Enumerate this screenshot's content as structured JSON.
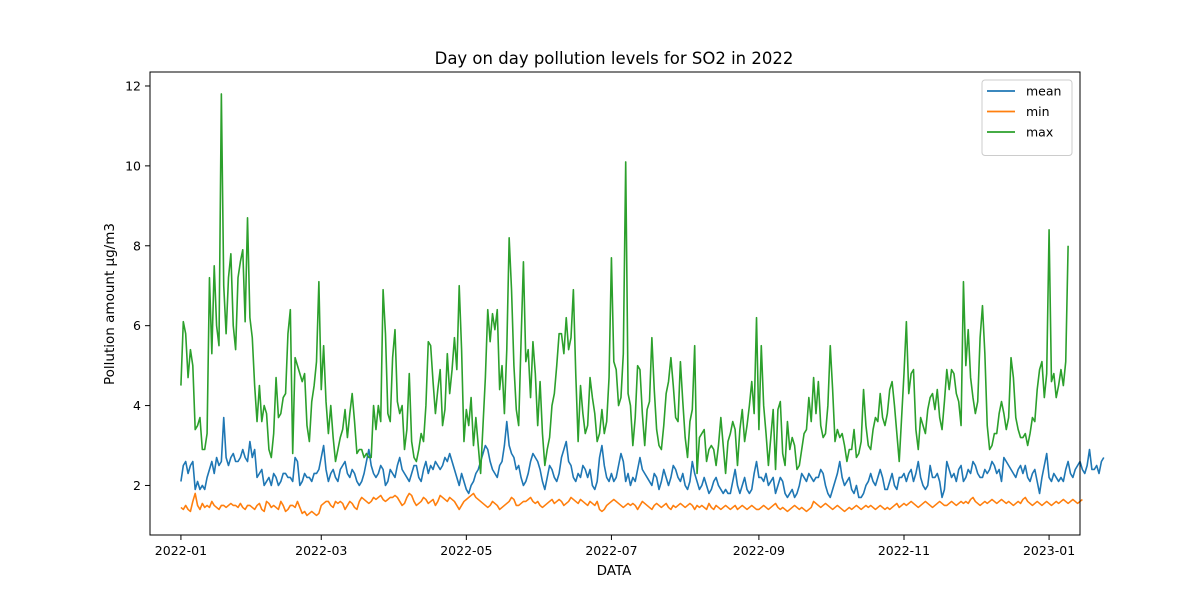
{
  "chart_data": {
    "type": "line",
    "title": "Day on day pollution levels for SO2 in 2022",
    "xlabel": "DATA",
    "ylabel": "Pollution amount µg/m3",
    "xlim": [
      "2021-12-19",
      "2023-01-14"
    ],
    "ylim": [
      0.76,
      12.35
    ],
    "x_ticks": [
      "2022-01",
      "2022-03",
      "2022-05",
      "2022-07",
      "2022-09",
      "2022-11",
      "2023-01"
    ],
    "y_ticks": [
      2,
      4,
      6,
      8,
      10,
      12
    ],
    "grid": false,
    "legend": "top-right",
    "x_start": "2022-01-01",
    "series": [
      {
        "name": "mean",
        "color": "#1f77b4",
        "values": [
          2.1,
          2.5,
          2.6,
          2.3,
          2.5,
          2.6,
          1.9,
          2.1,
          1.9,
          2.0,
          1.9,
          2.2,
          2.4,
          2.6,
          2.3,
          2.7,
          2.5,
          2.6,
          3.7,
          2.7,
          2.5,
          2.7,
          2.8,
          2.6,
          2.6,
          2.7,
          2.9,
          2.7,
          2.6,
          3.1,
          2.7,
          2.9,
          2.2,
          2.3,
          2.4,
          2.0,
          2.1,
          2.2,
          2.0,
          2.3,
          2.2,
          2.0,
          2.1,
          2.3,
          2.3,
          2.2,
          2.2,
          2.1,
          2.7,
          2.6,
          2.0,
          2.1,
          2.3,
          2.2,
          2.2,
          2.1,
          2.3,
          2.3,
          2.4,
          2.7,
          3.0,
          2.4,
          2.1,
          2.3,
          2.4,
          2.2,
          2.1,
          2.4,
          2.5,
          2.6,
          2.3,
          2.2,
          2.4,
          2.3,
          2.1,
          2.0,
          2.1,
          2.3,
          2.6,
          2.9,
          2.5,
          2.3,
          2.2,
          2.3,
          2.5,
          2.4,
          2.0,
          2.1,
          2.4,
          2.3,
          2.2,
          2.5,
          2.7,
          2.4,
          2.3,
          2.2,
          2.1,
          2.3,
          2.5,
          2.5,
          2.2,
          2.1,
          2.4,
          2.6,
          2.3,
          2.5,
          2.4,
          2.6,
          2.5,
          2.4,
          2.5,
          2.7,
          2.6,
          2.8,
          2.6,
          2.4,
          2.2,
          2.0,
          2.3,
          2.1,
          1.9,
          1.8,
          2.0,
          2.1,
          2.3,
          2.4,
          2.6,
          2.8,
          3.0,
          2.9,
          2.6,
          2.4,
          2.3,
          2.2,
          2.5,
          2.6,
          3.0,
          3.6,
          3.0,
          2.8,
          2.7,
          2.4,
          2.5,
          2.2,
          2.0,
          2.1,
          2.3,
          2.6,
          2.8,
          2.7,
          2.6,
          2.4,
          2.1,
          1.9,
          2.2,
          2.5,
          2.4,
          2.2,
          2.1,
          2.3,
          2.7,
          2.9,
          3.1,
          2.6,
          2.5,
          2.2,
          2.1,
          2.3,
          2.2,
          2.5,
          2.4,
          2.2,
          2.4,
          2.0,
          1.9,
          2.1,
          2.7,
          3.0,
          2.5,
          2.2,
          2.1,
          2.3,
          2.1,
          2.2,
          2.5,
          2.8,
          2.6,
          2.1,
          2.3,
          2.0,
          2.2,
          2.1,
          2.4,
          2.7,
          2.4,
          2.3,
          2.2,
          2.1,
          2.0,
          2.3,
          2.2,
          1.9,
          2.1,
          2.4,
          2.2,
          2.0,
          2.2,
          2.5,
          2.4,
          2.2,
          2.1,
          2.3,
          2.0,
          1.9,
          2.1,
          2.6,
          2.3,
          2.1,
          1.9,
          2.0,
          2.2,
          2.0,
          1.8,
          1.9,
          2.1,
          2.2,
          2.0,
          1.9,
          1.8,
          1.9,
          1.8,
          1.8,
          2.1,
          2.4,
          2.0,
          1.8,
          2.0,
          2.2,
          1.9,
          1.8,
          1.9,
          2.3,
          2.6,
          2.2,
          2.2,
          2.1,
          2.3,
          2.0,
          2.1,
          2.2,
          1.8,
          2.0,
          2.2,
          2.1,
          1.8,
          1.7,
          1.8,
          1.9,
          1.7,
          1.8,
          2.0,
          2.3,
          2.2,
          2.1,
          2.3,
          2.2,
          2.1,
          2.2,
          2.2,
          2.4,
          2.3,
          2.0,
          1.8,
          1.7,
          1.9,
          2.1,
          2.3,
          2.6,
          2.2,
          2.0,
          2.1,
          2.2,
          1.9,
          1.8,
          2.0,
          1.7,
          1.7,
          1.8,
          2.0,
          2.1,
          2.3,
          2.1,
          2.0,
          2.2,
          2.4,
          2.2,
          1.9,
          1.9,
          2.1,
          2.3,
          2.0,
          1.9,
          2.2,
          2.2,
          2.3,
          2.1,
          2.3,
          2.4,
          2.1,
          2.3,
          2.6,
          2.2,
          2.0,
          1.9,
          2.0,
          2.5,
          2.2,
          2.2,
          2.3,
          2.1,
          1.7,
          1.9,
          2.6,
          2.4,
          2.2,
          2.3,
          2.1,
          2.4,
          2.5,
          2.1,
          2.2,
          2.4,
          2.3,
          2.6,
          2.5,
          2.3,
          2.2,
          2.2,
          2.4,
          2.3,
          2.4,
          2.6,
          2.5,
          2.3,
          2.4,
          2.1,
          2.7,
          2.6,
          2.5,
          2.4,
          2.3,
          2.2,
          2.4,
          2.5,
          2.3,
          2.5,
          2.2,
          2.1,
          2.3,
          2.4,
          2.1,
          1.8,
          2.2,
          2.5,
          2.8,
          2.2,
          2.1,
          2.3,
          2.2,
          2.1,
          2.2,
          2.1,
          2.4,
          2.6,
          2.3,
          2.2,
          2.4,
          2.5,
          2.6,
          2.4,
          2.3,
          2.5,
          2.9,
          2.4,
          2.4,
          2.5,
          2.3,
          2.6,
          2.7
        ]
      },
      {
        "name": "min",
        "color": "#ff7f0e",
        "values": [
          1.45,
          1.4,
          1.5,
          1.4,
          1.35,
          1.6,
          1.8,
          1.5,
          1.4,
          1.55,
          1.45,
          1.5,
          1.45,
          1.6,
          1.5,
          1.45,
          1.4,
          1.5,
          1.5,
          1.45,
          1.5,
          1.55,
          1.5,
          1.5,
          1.45,
          1.55,
          1.45,
          1.4,
          1.5,
          1.5,
          1.45,
          1.4,
          1.5,
          1.55,
          1.4,
          1.35,
          1.6,
          1.55,
          1.45,
          1.5,
          1.45,
          1.4,
          1.6,
          1.5,
          1.35,
          1.4,
          1.5,
          1.5,
          1.45,
          1.6,
          1.45,
          1.3,
          1.35,
          1.25,
          1.3,
          1.35,
          1.3,
          1.25,
          1.3,
          1.5,
          1.55,
          1.6,
          1.6,
          1.5,
          1.45,
          1.6,
          1.55,
          1.6,
          1.55,
          1.4,
          1.5,
          1.6,
          1.55,
          1.45,
          1.4,
          1.6,
          1.7,
          1.65,
          1.6,
          1.55,
          1.6,
          1.7,
          1.65,
          1.7,
          1.75,
          1.65,
          1.6,
          1.65,
          1.7,
          1.7,
          1.75,
          1.7,
          1.6,
          1.5,
          1.55,
          1.7,
          1.8,
          1.75,
          1.6,
          1.5,
          1.55,
          1.6,
          1.7,
          1.65,
          1.55,
          1.6,
          1.65,
          1.5,
          1.6,
          1.75,
          1.7,
          1.65,
          1.6,
          1.7,
          1.65,
          1.6,
          1.5,
          1.4,
          1.5,
          1.6,
          1.65,
          1.7,
          1.75,
          1.8,
          1.7,
          1.65,
          1.6,
          1.55,
          1.5,
          1.45,
          1.5,
          1.6,
          1.55,
          1.5,
          1.4,
          1.45,
          1.5,
          1.55,
          1.6,
          1.7,
          1.65,
          1.5,
          1.5,
          1.55,
          1.6,
          1.6,
          1.65,
          1.7,
          1.6,
          1.55,
          1.6,
          1.5,
          1.45,
          1.5,
          1.55,
          1.6,
          1.65,
          1.55,
          1.6,
          1.65,
          1.6,
          1.5,
          1.55,
          1.6,
          1.7,
          1.65,
          1.6,
          1.55,
          1.65,
          1.6,
          1.55,
          1.5,
          1.6,
          1.55,
          1.5,
          1.6,
          1.4,
          1.35,
          1.4,
          1.5,
          1.55,
          1.6,
          1.65,
          1.6,
          1.55,
          1.5,
          1.45,
          1.5,
          1.55,
          1.5,
          1.55,
          1.5,
          1.4,
          1.5,
          1.6,
          1.55,
          1.5,
          1.45,
          1.4,
          1.5,
          1.55,
          1.5,
          1.45,
          1.5,
          1.55,
          1.45,
          1.4,
          1.5,
          1.45,
          1.5,
          1.55,
          1.5,
          1.45,
          1.5,
          1.55,
          1.5,
          1.4,
          1.5,
          1.45,
          1.5,
          1.45,
          1.4,
          1.55,
          1.45,
          1.4,
          1.5,
          1.45,
          1.4,
          1.45,
          1.5,
          1.45,
          1.4,
          1.45,
          1.5,
          1.4,
          1.45,
          1.5,
          1.45,
          1.4,
          1.45,
          1.5,
          1.45,
          1.4,
          1.4,
          1.45,
          1.5,
          1.45,
          1.4,
          1.45,
          1.5,
          1.55,
          1.45,
          1.4,
          1.45,
          1.4,
          1.35,
          1.4,
          1.45,
          1.5,
          1.45,
          1.4,
          1.45,
          1.4,
          1.35,
          1.4,
          1.45,
          1.6,
          1.55,
          1.5,
          1.45,
          1.5,
          1.55,
          1.5,
          1.45,
          1.4,
          1.45,
          1.5,
          1.45,
          1.4,
          1.35,
          1.4,
          1.45,
          1.4,
          1.45,
          1.5,
          1.45,
          1.4,
          1.45,
          1.5,
          1.45,
          1.5,
          1.45,
          1.4,
          1.45,
          1.5,
          1.45,
          1.4,
          1.45,
          1.4,
          1.45,
          1.5,
          1.55,
          1.45,
          1.5,
          1.55,
          1.5,
          1.55,
          1.6,
          1.55,
          1.5,
          1.45,
          1.5,
          1.55,
          1.6,
          1.55,
          1.5,
          1.45,
          1.5,
          1.55,
          1.6,
          1.55,
          1.5,
          1.5,
          1.55,
          1.6,
          1.55,
          1.5,
          1.55,
          1.6,
          1.55,
          1.6,
          1.55,
          1.65,
          1.7,
          1.6,
          1.55,
          1.5,
          1.55,
          1.6,
          1.55,
          1.6,
          1.65,
          1.6,
          1.55,
          1.6,
          1.65,
          1.6,
          1.55,
          1.6,
          1.55,
          1.5,
          1.55,
          1.6,
          1.55,
          1.65,
          1.7,
          1.6,
          1.55,
          1.5,
          1.55,
          1.6,
          1.55,
          1.5,
          1.55,
          1.6,
          1.55,
          1.5,
          1.55,
          1.6,
          1.55,
          1.6,
          1.65,
          1.6,
          1.55,
          1.6,
          1.65,
          1.6,
          1.55,
          1.6,
          1.65
        ]
      },
      {
        "name": "max",
        "color": "#2ca02c",
        "values": [
          4.5,
          6.1,
          5.8,
          4.7,
          5.4,
          5.0,
          3.4,
          3.5,
          3.7,
          2.9,
          2.9,
          3.3,
          7.2,
          5.3,
          7.5,
          6.0,
          5.5,
          11.8,
          7.0,
          5.8,
          7.2,
          7.8,
          6.0,
          5.4,
          7.2,
          7.6,
          7.9,
          6.1,
          8.7,
          6.2,
          5.7,
          4.5,
          3.6,
          4.5,
          3.6,
          4.0,
          3.8,
          2.9,
          2.7,
          3.3,
          4.7,
          3.7,
          3.8,
          4.2,
          4.3,
          5.8,
          6.4,
          2.8,
          5.2,
          5.0,
          4.8,
          4.6,
          4.8,
          3.5,
          3.1,
          4.1,
          4.5,
          5.1,
          7.1,
          4.4,
          5.5,
          4.1,
          3.3,
          4.0,
          3.2,
          2.6,
          2.9,
          3.2,
          3.4,
          3.9,
          3.2,
          3.8,
          4.3,
          3.6,
          2.8,
          2.9,
          2.9,
          2.7,
          2.8,
          2.7,
          2.7,
          4.0,
          3.4,
          4.0,
          3.6,
          6.9,
          5.8,
          3.8,
          3.6,
          5.2,
          5.9,
          4.1,
          3.8,
          4.0,
          2.9,
          3.4,
          4.8,
          3.1,
          2.7,
          2.6,
          2.9,
          3.3,
          3.1,
          4.0,
          5.6,
          5.5,
          4.6,
          3.8,
          4.4,
          4.9,
          3.5,
          3.9,
          5.3,
          4.3,
          4.9,
          5.7,
          4.9,
          7.0,
          5.4,
          3.1,
          3.9,
          3.5,
          4.2,
          3.0,
          3.7,
          3.0,
          2.3,
          3.5,
          4.7,
          6.4,
          5.6,
          6.3,
          5.9,
          6.4,
          4.4,
          5.0,
          3.8,
          5.4,
          8.2,
          6.9,
          5.0,
          3.9,
          3.5,
          5.6,
          7.6,
          5.1,
          5.4,
          4.2,
          5.6,
          4.8,
          3.5,
          4.6,
          3.3,
          2.5,
          2.9,
          3.2,
          4.0,
          4.3,
          5.0,
          5.8,
          5.8,
          5.3,
          6.2,
          5.4,
          5.7,
          6.9,
          4.8,
          3.1,
          4.5,
          3.8,
          3.3,
          3.5,
          4.7,
          4.2,
          3.8,
          3.1,
          3.3,
          3.9,
          3.3,
          3.6,
          4.7,
          7.7,
          5.1,
          4.9,
          4.0,
          4.2,
          5.3,
          10.1,
          4.3,
          4.0,
          3.0,
          3.7,
          5.0,
          4.9,
          3.8,
          3.0,
          3.9,
          4.1,
          5.7,
          4.4,
          3.4,
          3.0,
          2.9,
          3.5,
          4.3,
          4.6,
          5.2,
          4.5,
          3.7,
          3.6,
          5.1,
          4.1,
          3.2,
          2.7,
          3.6,
          3.9,
          5.5,
          2.3,
          3.2,
          3.3,
          3.4,
          2.6,
          2.9,
          3.0,
          2.9,
          2.5,
          3.0,
          3.7,
          3.0,
          2.3,
          3.1,
          3.3,
          3.6,
          3.4,
          2.5,
          3.4,
          3.9,
          3.1,
          3.5,
          4.0,
          4.6,
          3.8,
          6.2,
          3.4,
          5.5,
          4.0,
          3.3,
          2.5,
          3.2,
          3.9,
          2.4,
          3.9,
          4.1,
          2.8,
          2.5,
          3.6,
          2.9,
          3.2,
          3.0,
          2.4,
          2.5,
          2.9,
          3.3,
          3.4,
          4.2,
          3.6,
          4.7,
          3.8,
          4.6,
          3.5,
          3.2,
          3.3,
          4.0,
          5.5,
          4.4,
          3.1,
          3.4,
          3.2,
          3.3,
          3.0,
          2.6,
          2.9,
          2.9,
          3.4,
          2.7,
          2.8,
          3.1,
          4.4,
          3.5,
          3.0,
          2.9,
          3.4,
          3.7,
          3.6,
          4.3,
          3.7,
          3.5,
          3.8,
          4.4,
          4.6,
          4.0,
          3.3,
          2.6,
          3.7,
          4.8,
          6.1,
          4.3,
          4.8,
          4.9,
          3.4,
          2.9,
          3.7,
          3.5,
          3.3,
          3.9,
          4.2,
          4.3,
          3.9,
          4.4,
          3.7,
          3.4,
          4.1,
          4.9,
          4.4,
          4.9,
          4.8,
          4.3,
          4.1,
          3.5,
          7.1,
          5.0,
          5.9,
          4.7,
          4.2,
          3.8,
          4.1,
          5.7,
          6.5,
          5.3,
          3.5,
          2.9,
          3.0,
          3.3,
          3.3,
          3.8,
          4.1,
          3.8,
          3.4,
          3.7,
          5.2,
          4.7,
          3.7,
          3.4,
          3.2,
          3.2,
          3.3,
          3.0,
          3.3,
          3.7,
          3.6,
          4.4,
          4.9,
          5.1,
          4.2,
          4.8,
          8.4,
          4.6,
          4.8,
          4.2,
          4.5,
          4.9,
          4.5,
          5.1,
          8.0
        ]
      }
    ]
  }
}
